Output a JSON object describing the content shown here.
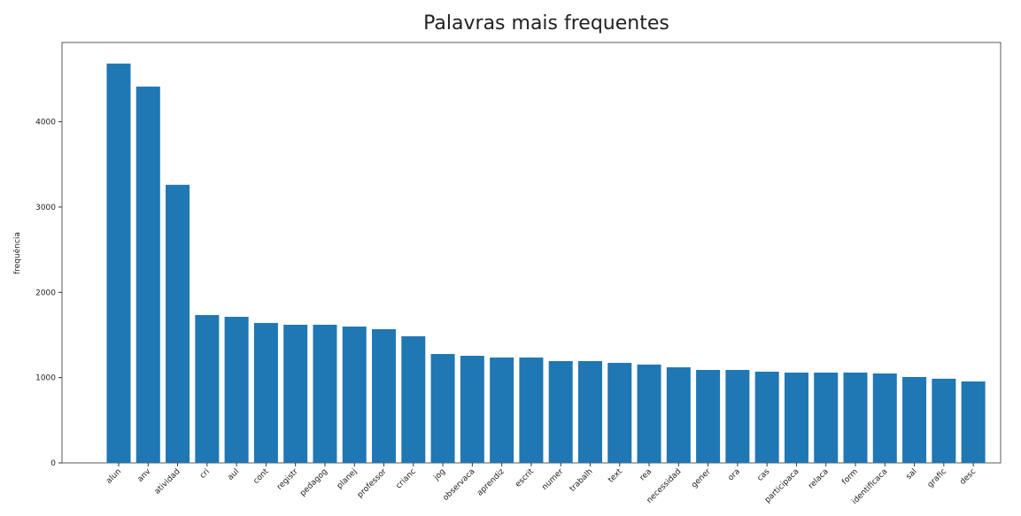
{
  "chart_data": {
    "type": "bar",
    "title": "Palavras mais frequentes",
    "ylabel": "frequência",
    "categories": [
      "alun",
      "anv",
      "atividad",
      "cri",
      "aul",
      "cont",
      "registr",
      "pedagog",
      "planej",
      "professor",
      "crianc",
      "jog",
      "observaca",
      "aprendiz",
      "escrit",
      "numer",
      "trabalh",
      "text",
      "rea",
      "necessidad",
      "gener",
      "ora",
      "cas",
      "participaca",
      "relaca",
      "form",
      "identificaca",
      "sal",
      "grafic",
      "desc"
    ],
    "values": [
      4683,
      4413,
      3261,
      1734,
      1713,
      1641,
      1620,
      1620,
      1599,
      1568,
      1485,
      1277,
      1256,
      1236,
      1236,
      1194,
      1194,
      1173,
      1153,
      1121,
      1090,
      1090,
      1070,
      1059,
      1059,
      1059,
      1049,
      1007,
      987,
      955
    ],
    "color": "#1f77b4",
    "ylim": [
      0,
      4930
    ],
    "yticks": [
      0,
      1000,
      2000,
      3000,
      4000
    ]
  }
}
